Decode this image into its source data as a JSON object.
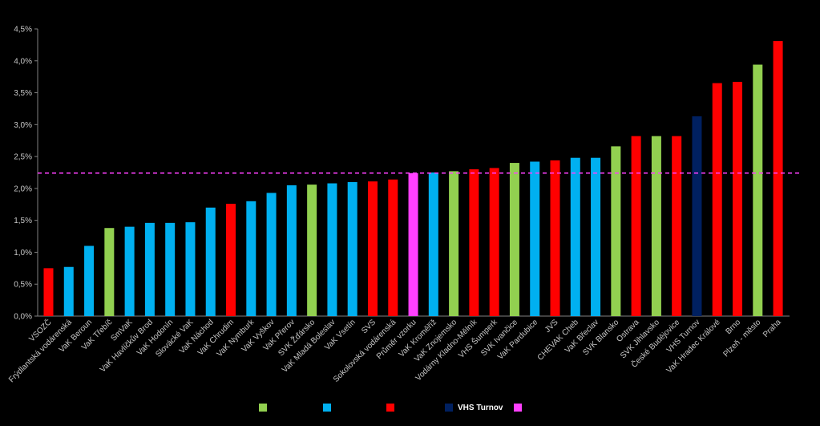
{
  "chart_data": {
    "type": "bar",
    "title": "",
    "xlabel": "",
    "ylabel": "",
    "ylim": [
      0,
      0.045
    ],
    "y_ticks": [
      "0,0%",
      "0,5%",
      "1,0%",
      "1,5%",
      "2,0%",
      "2,5%",
      "3,0%",
      "3,5%",
      "4,0%",
      "4,5%"
    ],
    "reference_line": {
      "value": 0.0224,
      "color": "#ff40ff",
      "style": "dashed"
    },
    "categories": [
      "VSOZČ",
      "Frýdlantská vodárenská",
      "VaK Beroun",
      "VaK Třebíč",
      "SmVaK",
      "VaK Havlíčkův Brod",
      "VaK Hodonín",
      "Slovácké VaK",
      "VaK Náchod",
      "VaK Chrudim",
      "VaK Nymburk",
      "VaK Vyškov",
      "VaK Přerov",
      "SVK Žďársko",
      "VaK Mladá Boleslav",
      "VaK Vsetín",
      "SVS",
      "Sokolovská vodárenská",
      "Průměr vzorku",
      "VaK Kroměříž",
      "VaK Znojemsko",
      "Vodárny Kladno-Mělník",
      "VHS Šumperk",
      "SVK Ivančice",
      "VaK Pardubice",
      "JVS",
      "CHEVAK Cheb",
      "VaK Břeclav",
      "SVK Blansko",
      "Ostrava",
      "SVK Jihlavsko",
      "České Budějovice",
      "VHS Turnov",
      "VaK Hradec Králové",
      "Brno",
      "Plzeň - město",
      "Praha"
    ],
    "values": [
      0.0075,
      0.0077,
      0.011,
      0.0138,
      0.014,
      0.0146,
      0.0146,
      0.0147,
      0.017,
      0.0176,
      0.018,
      0.0193,
      0.0205,
      0.0206,
      0.0208,
      0.021,
      0.0211,
      0.0214,
      0.0224,
      0.0225,
      0.0227,
      0.023,
      0.0232,
      0.024,
      0.0242,
      0.0244,
      0.0248,
      0.0248,
      0.0266,
      0.0282,
      0.0282,
      0.0282,
      0.0313,
      0.0365,
      0.0367,
      0.0394,
      0.0431
    ],
    "colors": [
      "#ff0000",
      "#00b0f0",
      "#00b0f0",
      "#92d050",
      "#00b0f0",
      "#00b0f0",
      "#00b0f0",
      "#00b0f0",
      "#00b0f0",
      "#ff0000",
      "#00b0f0",
      "#00b0f0",
      "#00b0f0",
      "#92d050",
      "#00b0f0",
      "#00b0f0",
      "#ff0000",
      "#ff0000",
      "#ff40ff",
      "#00b0f0",
      "#92d050",
      "#ff0000",
      "#ff0000",
      "#92d050",
      "#00b0f0",
      "#ff0000",
      "#00b0f0",
      "#00b0f0",
      "#92d050",
      "#ff0000",
      "#92d050",
      "#ff0000",
      "#002060",
      "#ff0000",
      "#ff0000",
      "#92d050",
      "#ff0000"
    ],
    "legend": [
      {
        "color": "#92d050",
        "label": ""
      },
      {
        "color": "#00b0f0",
        "label": ""
      },
      {
        "color": "#ff0000",
        "label": ""
      },
      {
        "color": "#002060",
        "label": "VHS Turnov"
      },
      {
        "color": "#ff40ff",
        "label": ""
      }
    ],
    "legend_position": "bottom",
    "grid": false
  }
}
